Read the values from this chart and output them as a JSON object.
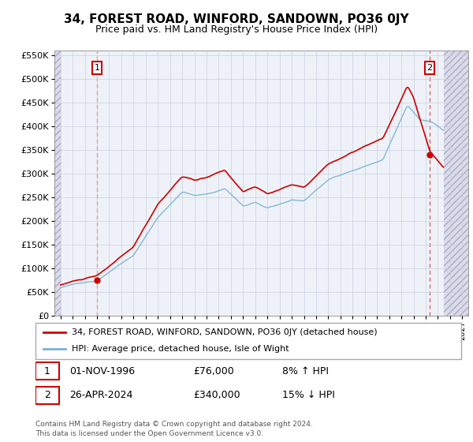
{
  "title": "34, FOREST ROAD, WINFORD, SANDOWN, PO36 0JY",
  "subtitle": "Price paid vs. HM Land Registry's House Price Index (HPI)",
  "sale1_date": "01-NOV-1996",
  "sale1_price": 76000,
  "sale1_label": "8% ↑ HPI",
  "sale1_x": 1997.0,
  "sale2_date": "26-APR-2024",
  "sale2_price": 340000,
  "sale2_label": "15% ↓ HPI",
  "sale2_x": 2024.33,
  "legend_label1": "34, FOREST ROAD, WINFORD, SANDOWN, PO36 0JY (detached house)",
  "legend_label2": "HPI: Average price, detached house, Isle of Wight",
  "footnote": "Contains HM Land Registry data © Crown copyright and database right 2024.\nThis data is licensed under the Open Government Licence v3.0.",
  "sale_color": "#cc0000",
  "hpi_color": "#7ab0d4",
  "hatch_fill": "#e8e8f0",
  "plot_bg": "#eef2f8",
  "grid_color": "#c8cfe0",
  "ylim_min": 0,
  "ylim_max": 560000,
  "xlim_min": 1993.5,
  "xlim_max": 2027.5,
  "hatch_left_end": 1994.0,
  "hatch_right_start": 2025.5,
  "yticks": [
    0,
    50000,
    100000,
    150000,
    200000,
    250000,
    300000,
    350000,
    400000,
    450000,
    500000,
    550000
  ]
}
